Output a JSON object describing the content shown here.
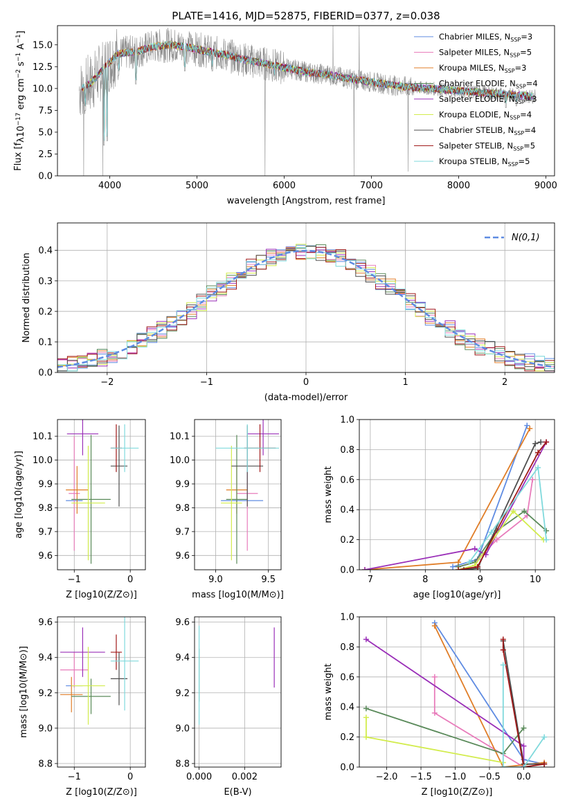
{
  "colors": {
    "chabrier_miles": "#5e8be2",
    "salpeter_miles": "#e87cbb",
    "kroupa_miles": "#e07d27",
    "chabrier_elodie": "#5a8a5a",
    "salpeter_elodie": "#9a2fb8",
    "kroupa_elodie": "#d2ec4c",
    "chabrier_stelib": "#4d4d4d",
    "salpeter_stelib": "#a01818",
    "kroupa_stelib": "#7fd9dc",
    "data_spectrum": "#8c8c8c",
    "gaussian": "#5e8be2",
    "grid": "#b0b0b0"
  },
  "chart_data": [
    {
      "id": "spectrum",
      "type": "line",
      "title": "PLATE=1416, MJD=52875, FIBERID=0377, z=0.038",
      "xlabel": "wavelength [Angstrom, rest frame]",
      "ylabel": "Flux [f_λ 10^-17 erg cm^-2 s^-1 A^-1]",
      "xlim": [
        3400,
        9100
      ],
      "ylim": [
        0,
        17.2
      ],
      "xticks": [
        "4000",
        "5000",
        "6000",
        "7000",
        "8000",
        "9000"
      ],
      "yticks": [
        "0.0",
        "2.5",
        "5.0",
        "7.5",
        "10.0",
        "12.5",
        "15.0"
      ],
      "grid": false,
      "legend_position": "top-right",
      "legend": [
        {
          "model": "Chabrier MILES",
          "nssp": "=3"
        },
        {
          "model": "Salpeter MILES",
          "nssp": "=5"
        },
        {
          "model": "Kroupa MILES",
          "nssp": "=3"
        },
        {
          "model": "Chabrier ELODIE",
          "nssp": "=4"
        },
        {
          "model": "Salpeter ELODIE",
          "nssp": "=3"
        },
        {
          "model": "Kroupa ELODIE",
          "nssp": "=4"
        },
        {
          "model": "Chabrier STELIB",
          "nssp": "=4"
        },
        {
          "model": "Salpeter STELIB",
          "nssp": "=5"
        },
        {
          "model": "Kroupa STELIB",
          "nssp": "=5"
        }
      ],
      "continuum": [
        [
          3650,
          9.8
        ],
        [
          3800,
          10.8
        ],
        [
          3950,
          12.5
        ],
        [
          4100,
          14.0
        ],
        [
          4300,
          14.2
        ],
        [
          4500,
          14.8
        ],
        [
          4700,
          15.0
        ],
        [
          4900,
          14.7
        ],
        [
          5100,
          14.3
        ],
        [
          5300,
          13.9
        ],
        [
          5500,
          13.4
        ],
        [
          5700,
          13.0
        ],
        [
          5900,
          12.6
        ],
        [
          6100,
          12.2
        ],
        [
          6300,
          11.8
        ],
        [
          6500,
          11.6
        ],
        [
          6700,
          11.2
        ],
        [
          6900,
          10.9
        ],
        [
          7100,
          10.6
        ],
        [
          7300,
          10.3
        ],
        [
          7500,
          10.1
        ],
        [
          7700,
          10.0
        ],
        [
          7900,
          9.8
        ],
        [
          8100,
          9.7
        ],
        [
          8300,
          9.5
        ],
        [
          8500,
          9.4
        ],
        [
          8700,
          9.2
        ],
        [
          8850,
          9.1
        ]
      ],
      "absorption_features": [
        [
          3720,
          7.5
        ],
        [
          3934,
          3.5
        ],
        [
          3969,
          4.0
        ],
        [
          4102,
          11.5
        ],
        [
          4300,
          10.5
        ],
        [
          4861,
          12.0
        ],
        [
          5175,
          12.0
        ],
        [
          5890,
          11.0
        ],
        [
          6563,
          10.5
        ],
        [
          8498,
          8.5
        ],
        [
          8542,
          7.8
        ],
        [
          8662,
          8.0
        ]
      ],
      "data_spikes": [
        [
          3700,
          0.0
        ],
        [
          3920,
          0.0
        ],
        [
          5780,
          0.0
        ],
        [
          6800,
          0.0
        ],
        [
          6560,
          17.2
        ],
        [
          6860,
          17.2
        ],
        [
          7420,
          0.5
        ]
      ]
    },
    {
      "id": "residuals",
      "type": "histogram",
      "xlabel": "(data-model)/error",
      "ylabel": "Normed distribution",
      "xlim": [
        -2.5,
        2.5
      ],
      "ylim": [
        0,
        0.49
      ],
      "xticks": [
        "−2",
        "−1",
        "0",
        "1",
        "2"
      ],
      "yticks": [
        "0.0",
        "0.1",
        "0.2",
        "0.3",
        "0.4"
      ],
      "grid": true,
      "bin_width": 0.1,
      "legend_position": "top-right",
      "gaussian_label": "N(0,1)"
    },
    {
      "id": "age_vs_z",
      "type": "scatter",
      "xlabel": "Z [log10(Z/Z⊙)]",
      "ylabel": "age  [log10(age/yr)]",
      "xlim": [
        -1.3,
        0.27
      ],
      "ylim": [
        9.54,
        10.17
      ],
      "xticks": [
        "−1",
        "0"
      ],
      "yticks": [
        "9.6",
        "9.7",
        "9.8",
        "9.9",
        "10.0",
        "10.1"
      ],
      "grid": true,
      "points": [
        {
          "model": "chabrier_miles",
          "x": -1.0,
          "xerr": 0.15,
          "y": 9.83,
          "yerr": 0.0
        },
        {
          "model": "salpeter_miles",
          "x": -1.0,
          "xerr": 0.1,
          "y": 9.86,
          "yerr": 0.24
        },
        {
          "model": "kroupa_miles",
          "x": -0.95,
          "xerr": 0.2,
          "y": 9.875,
          "yerr": 0.1
        },
        {
          "model": "chabrier_elodie",
          "x": -0.7,
          "xerr": 0.35,
          "y": 9.835,
          "yerr": 0.27
        },
        {
          "model": "salpeter_elodie",
          "x": -0.85,
          "xerr": 0.28,
          "y": 10.11,
          "yerr": 0.09
        },
        {
          "model": "kroupa_elodie",
          "x": -0.75,
          "xerr": 0.3,
          "y": 9.82,
          "yerr": 0.24
        },
        {
          "model": "chabrier_stelib",
          "x": -0.2,
          "xerr": 0.15,
          "y": 9.975,
          "yerr": 0.17
        },
        {
          "model": "salpeter_stelib",
          "x": -0.25,
          "xerr": 0.1,
          "y": 10.05,
          "yerr": 0.1
        },
        {
          "model": "kroupa_stelib",
          "x": -0.1,
          "xerr": 0.25,
          "y": 10.05,
          "yerr": 0.1
        }
      ]
    },
    {
      "id": "age_vs_mass",
      "type": "scatter",
      "xlabel": "mass [log10(M/M⊙)]",
      "ylabel": "",
      "xlim": [
        8.8,
        9.62
      ],
      "ylim": [
        9.54,
        10.17
      ],
      "xticks": [
        "9.0",
        "9.5"
      ],
      "yticks": [
        "9.6",
        "9.7",
        "9.8",
        "9.9",
        "10.0",
        "10.1"
      ],
      "grid": true,
      "points": [
        {
          "model": "chabrier_miles",
          "x": 9.25,
          "xerr": 0.2,
          "y": 9.83,
          "yerr": 0.0
        },
        {
          "model": "salpeter_miles",
          "x": 9.3,
          "xerr": 0.1,
          "y": 9.86,
          "yerr": 0.24
        },
        {
          "model": "kroupa_miles",
          "x": 9.2,
          "xerr": 0.1,
          "y": 9.875,
          "yerr": 0.1
        },
        {
          "model": "chabrier_elodie",
          "x": 9.2,
          "xerr": 0.1,
          "y": 9.835,
          "yerr": 0.27
        },
        {
          "model": "salpeter_elodie",
          "x": 9.45,
          "xerr": 0.15,
          "y": 10.11,
          "yerr": 0.09
        },
        {
          "model": "kroupa_elodie",
          "x": 9.15,
          "xerr": 0.1,
          "y": 9.82,
          "yerr": 0.24
        },
        {
          "model": "chabrier_stelib",
          "x": 9.3,
          "xerr": 0.15,
          "y": 9.975,
          "yerr": 0.17
        },
        {
          "model": "salpeter_stelib",
          "x": 9.42,
          "xerr": 0.15,
          "y": 10.05,
          "yerr": 0.1
        },
        {
          "model": "kroupa_stelib",
          "x": 9.3,
          "xerr": 0.3,
          "y": 10.05,
          "yerr": 0.1
        }
      ]
    },
    {
      "id": "weight_vs_age",
      "type": "line",
      "xlabel": "age  [log10(age/yr)]",
      "ylabel": "mass weight",
      "xlim": [
        6.8,
        10.35
      ],
      "ylim": [
        0,
        1.0
      ],
      "xticks": [
        "7",
        "8",
        "9",
        "10"
      ],
      "yticks": [
        "0.0",
        "0.2",
        "0.4",
        "0.6",
        "0.8",
        "1.0"
      ],
      "grid": true,
      "series": [
        {
          "model": "chabrier_miles",
          "x": [
            8.5,
            8.95,
            9.85
          ],
          "y": [
            0.02,
            0.07,
            0.96
          ]
        },
        {
          "model": "salpeter_miles",
          "x": [
            8.6,
            8.9,
            9.3,
            9.85,
            9.95
          ],
          "y": [
            0.02,
            0.05,
            0.2,
            0.36,
            0.6
          ]
        },
        {
          "model": "kroupa_miles",
          "x": [
            6.9,
            8.6,
            9.9
          ],
          "y": [
            0.0,
            0.05,
            0.94
          ]
        },
        {
          "model": "chabrier_elodie",
          "x": [
            8.6,
            8.9,
            9.3,
            9.8,
            10.2
          ],
          "y": [
            0.02,
            0.05,
            0.26,
            0.39,
            0.26
          ]
        },
        {
          "model": "salpeter_elodie",
          "x": [
            6.9,
            8.9,
            9.1,
            10.2
          ],
          "y": [
            0.0,
            0.14,
            0.1,
            0.85
          ]
        },
        {
          "model": "kroupa_elodie",
          "x": [
            8.6,
            8.9,
            9.6,
            10.15
          ],
          "y": [
            0.0,
            0.03,
            0.39,
            0.2
          ]
        },
        {
          "model": "chabrier_stelib",
          "x": [
            8.7,
            8.95,
            10.0,
            10.1
          ],
          "y": [
            0.0,
            0.01,
            0.84,
            0.85
          ]
        },
        {
          "model": "salpeter_stelib",
          "x": [
            8.6,
            8.95,
            10.05,
            10.2
          ],
          "y": [
            0.0,
            0.02,
            0.78,
            0.85
          ]
        },
        {
          "model": "kroupa_stelib",
          "x": [
            8.8,
            9.2,
            10.05,
            10.2
          ],
          "y": [
            0.05,
            0.25,
            0.68,
            0.2
          ]
        }
      ]
    },
    {
      "id": "mass_vs_z",
      "type": "scatter",
      "xlabel": "Z [log10(Z/Z⊙)]",
      "ylabel": "mass [log10(M/M⊙)]",
      "xlim": [
        -1.3,
        0.27
      ],
      "ylim": [
        8.78,
        9.63
      ],
      "xticks": [
        "−1",
        "0"
      ],
      "yticks": [
        "8.8",
        "9.0",
        "9.2",
        "9.4",
        "9.6"
      ],
      "grid": true,
      "points": [
        {
          "model": "chabrier_miles",
          "x": -1.0,
          "xerr": 0.15,
          "y": 9.24,
          "yerr": 0.0
        },
        {
          "model": "salpeter_miles",
          "x": -1.0,
          "xerr": 0.25,
          "y": 9.33,
          "yerr": 0.1
        },
        {
          "model": "kroupa_miles",
          "x": -1.05,
          "xerr": 0.2,
          "y": 9.19,
          "yerr": 0.1
        },
        {
          "model": "chabrier_elodie",
          "x": -0.7,
          "xerr": 0.35,
          "y": 9.18,
          "yerr": 0.1
        },
        {
          "model": "salpeter_elodie",
          "x": -0.85,
          "xerr": 0.4,
          "y": 9.43,
          "yerr": 0.14
        },
        {
          "model": "kroupa_elodie",
          "x": -0.75,
          "xerr": 0.3,
          "y": 9.24,
          "yerr": 0.22
        },
        {
          "model": "chabrier_stelib",
          "x": -0.2,
          "xerr": 0.15,
          "y": 9.28,
          "yerr": 0.15
        },
        {
          "model": "salpeter_stelib",
          "x": -0.25,
          "xerr": 0.1,
          "y": 9.43,
          "yerr": 0.1
        },
        {
          "model": "kroupa_stelib",
          "x": -0.1,
          "xerr": 0.25,
          "y": 9.38,
          "yerr": 0.28
        }
      ]
    },
    {
      "id": "mass_vs_ebv",
      "type": "scatter",
      "xlabel": "E(B-V)",
      "ylabel": "",
      "xlim": [
        -0.0002,
        0.0036
      ],
      "ylim": [
        8.78,
        9.63
      ],
      "xticks": [
        "0.000",
        "0.002"
      ],
      "yticks": [
        "8.8",
        "9.0",
        "9.2",
        "9.4",
        "9.6"
      ],
      "grid": true,
      "points": [
        {
          "model": "chabrier_elodie",
          "x": 0.0,
          "xerr": 0.0,
          "y": 9.3,
          "yerr": 0.15
        },
        {
          "model": "kroupa_stelib",
          "x": 0.0,
          "xerr": 0.0,
          "y": 9.3,
          "yerr": 0.28
        },
        {
          "model": "salpeter_elodie",
          "x": 0.0033,
          "xerr": 0.0,
          "y": 9.4,
          "yerr": 0.17
        }
      ]
    },
    {
      "id": "weight_vs_z",
      "type": "line",
      "xlabel": "Z [log10(Z/Z⊙)]",
      "ylabel": "mass weight",
      "xlim": [
        -2.4,
        0.45
      ],
      "ylim": [
        0,
        1.0
      ],
      "xticks": [
        "−2.0",
        "−1.5",
        "−1.0",
        "−0.5",
        "0.0"
      ],
      "yticks": [
        "0.0",
        "0.2",
        "0.4",
        "0.6",
        "0.8",
        "1.0"
      ],
      "grid": true,
      "series": [
        {
          "model": "chabrier_miles",
          "x": [
            -1.3,
            0.0,
            0.3
          ],
          "y": [
            0.96,
            0.05,
            0.02
          ]
        },
        {
          "model": "salpeter_miles",
          "x": [
            -1.3,
            -1.3,
            0.0,
            0.0
          ],
          "y": [
            0.6,
            0.36,
            0.0,
            0.02
          ]
        },
        {
          "model": "kroupa_miles",
          "x": [
            -1.3,
            -0.3,
            0.3
          ],
          "y": [
            0.94,
            0.0,
            0.03
          ]
        },
        {
          "model": "chabrier_elodie",
          "x": [
            -2.3,
            -0.3,
            0.0
          ],
          "y": [
            0.39,
            0.09,
            0.26
          ]
        },
        {
          "model": "salpeter_elodie",
          "x": [
            -2.3,
            0.0,
            0.0
          ],
          "y": [
            0.85,
            0.14,
            0.0
          ]
        },
        {
          "model": "kroupa_elodie",
          "x": [
            -2.3,
            -2.3,
            -0.3
          ],
          "y": [
            0.33,
            0.2,
            0.03
          ]
        },
        {
          "model": "chabrier_stelib",
          "x": [
            -0.3,
            0.0,
            0.3
          ],
          "y": [
            0.84,
            0.02,
            0.02
          ]
        },
        {
          "model": "salpeter_stelib",
          "x": [
            -0.3,
            -0.3,
            0.0,
            0.3
          ],
          "y": [
            0.85,
            0.78,
            0.0,
            0.02
          ]
        },
        {
          "model": "kroupa_stelib",
          "x": [
            -0.3,
            -0.3,
            0.0,
            0.3
          ],
          "y": [
            0.68,
            0.0,
            0.0,
            0.2
          ]
        }
      ]
    }
  ]
}
